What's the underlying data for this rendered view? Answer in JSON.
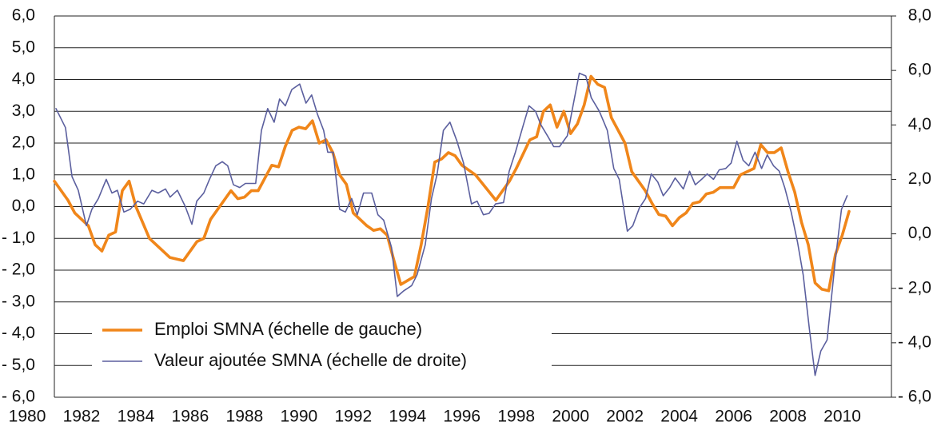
{
  "chart_data": {
    "type": "line",
    "xlim": [
      1981,
      2011.75
    ],
    "xticks": [
      1980,
      1982,
      1984,
      1986,
      1988,
      1990,
      1992,
      1994,
      1996,
      1998,
      2000,
      2002,
      2004,
      2006,
      2008,
      2010
    ],
    "ylim": [
      -6,
      6
    ],
    "yticks": [
      {
        "value": 6,
        "label": "6,0"
      },
      {
        "value": 5,
        "label": "5,0"
      },
      {
        "value": 4,
        "label": "4,0"
      },
      {
        "value": 3,
        "label": "3,0"
      },
      {
        "value": 2,
        "label": "2,0"
      },
      {
        "value": 1,
        "label": "1,0"
      },
      {
        "value": 0,
        "label": "0,0"
      },
      {
        "value": -1,
        "label": "- 1,0"
      },
      {
        "value": -2,
        "label": "- 2,0"
      },
      {
        "value": -3,
        "label": "- 3,0"
      },
      {
        "value": -4,
        "label": "- 4,0"
      },
      {
        "value": -5,
        "label": "- 5,0"
      },
      {
        "value": -6,
        "label": "- 6,0"
      }
    ],
    "y2lim": [
      -6,
      8
    ],
    "y2ticks": [
      {
        "value": 8,
        "label": "8,0"
      },
      {
        "value": 6,
        "label": "6,0"
      },
      {
        "value": 4,
        "label": "4,0"
      },
      {
        "value": 2,
        "label": "2,0"
      },
      {
        "value": 0,
        "label": "0,0"
      },
      {
        "value": -2,
        "label": "- 2,0"
      },
      {
        "value": -4,
        "label": "- 4,0"
      },
      {
        "value": -6,
        "label": "- 6,0"
      }
    ],
    "grid": true,
    "legend": "lower left",
    "series": [
      {
        "name": "Emploi SMNA (échelle de gauche)",
        "color": "#f0861a",
        "axis": "y",
        "x": [
          1981.0,
          1981.5,
          1981.75,
          1982.25,
          1982.5,
          1982.75,
          1983.0,
          1983.25,
          1983.5,
          1983.75,
          1984.0,
          1984.5,
          1985.25,
          1985.75,
          1986.25,
          1986.5,
          1986.75,
          1987.25,
          1987.5,
          1987.75,
          1988.0,
          1988.25,
          1988.5,
          1988.75,
          1989.0,
          1989.25,
          1989.5,
          1989.75,
          1990.0,
          1990.25,
          1990.5,
          1990.75,
          1991.0,
          1991.25,
          1991.5,
          1991.75,
          1992.0,
          1992.5,
          1992.75,
          1993.0,
          1993.25,
          1993.5,
          1993.75,
          1994.25,
          1994.5,
          1994.75,
          1995.0,
          1995.25,
          1995.5,
          1995.75,
          1996.0,
          1996.5,
          1997.25,
          1997.5,
          1997.75,
          1998.0,
          1998.5,
          1998.75,
          1999.0,
          1999.25,
          1999.5,
          1999.75,
          2000.0,
          2000.25,
          2000.5,
          2000.75,
          2001.0,
          2001.25,
          2001.5,
          2002.0,
          2002.25,
          2002.75,
          2003.0,
          2003.25,
          2003.5,
          2003.75,
          2004.0,
          2004.25,
          2004.5,
          2004.75,
          2005.0,
          2005.25,
          2005.5,
          2006.0,
          2006.25,
          2006.5,
          2006.75,
          2007.0,
          2007.25,
          2007.5,
          2007.75,
          2008.0,
          2008.25,
          2008.5,
          2008.75,
          2009.0,
          2009.25,
          2009.5,
          2009.75,
          2010.0,
          2010.25
        ],
        "values": [
          0.8,
          0.2,
          -0.2,
          -0.6,
          -1.2,
          -1.4,
          -0.9,
          -0.8,
          0.5,
          0.8,
          0.0,
          -1.0,
          -1.6,
          -1.7,
          -1.1,
          -1.0,
          -0.4,
          0.2,
          0.5,
          0.25,
          0.3,
          0.5,
          0.5,
          0.9,
          1.3,
          1.25,
          1.9,
          2.4,
          2.5,
          2.45,
          2.7,
          2.0,
          2.1,
          1.7,
          1.0,
          0.7,
          -0.2,
          -0.6,
          -0.75,
          -0.7,
          -0.9,
          -1.7,
          -2.45,
          -2.2,
          -1.2,
          0.0,
          1.4,
          1.5,
          1.7,
          1.6,
          1.3,
          1.0,
          0.2,
          0.5,
          0.8,
          1.2,
          2.1,
          2.2,
          3.0,
          3.2,
          2.5,
          3.0,
          2.3,
          2.6,
          3.2,
          4.1,
          3.85,
          3.75,
          2.8,
          2.0,
          1.1,
          0.5,
          0.1,
          -0.25,
          -0.3,
          -0.6,
          -0.35,
          -0.2,
          0.1,
          0.15,
          0.4,
          0.45,
          0.6,
          0.6,
          1.0,
          1.1,
          1.2,
          1.95,
          1.7,
          1.7,
          1.85,
          1.1,
          0.45,
          -0.5,
          -1.2,
          -2.4,
          -2.6,
          -2.65,
          -1.5,
          -0.9,
          -0.15
        ]
      },
      {
        "name": "Valeur ajoutée SMNA (échelle de droite)",
        "color": "#5b5f9e",
        "axis": "y2",
        "x": [
          1981.06,
          1981.41,
          1981.65,
          1981.88,
          1982.18,
          1982.38,
          1982.62,
          1982.91,
          1983.12,
          1983.32,
          1983.56,
          1983.79,
          1984.06,
          1984.29,
          1984.59,
          1984.82,
          1985.09,
          1985.26,
          1985.53,
          1985.82,
          1986.06,
          1986.24,
          1986.5,
          1986.71,
          1986.94,
          1987.18,
          1987.38,
          1987.59,
          1987.82,
          1988.03,
          1988.41,
          1988.62,
          1988.85,
          1989.09,
          1989.29,
          1989.5,
          1989.74,
          1990.03,
          1990.26,
          1990.47,
          1990.68,
          1990.91,
          1991.06,
          1991.26,
          1991.5,
          1991.71,
          1991.94,
          1992.15,
          1992.38,
          1992.68,
          1992.91,
          1993.12,
          1993.41,
          1993.62,
          1993.85,
          1994.15,
          1994.35,
          1994.65,
          1994.88,
          1995.09,
          1995.32,
          1995.56,
          1995.82,
          1996.06,
          1996.35,
          1996.56,
          1996.79,
          1997.0,
          1997.24,
          1997.53,
          1997.74,
          1997.97,
          1998.26,
          1998.47,
          1998.71,
          1998.91,
          1999.15,
          1999.38,
          1999.59,
          1999.88,
          2000.09,
          2000.32,
          2000.56,
          2000.76,
          2001.06,
          2001.35,
          2001.59,
          2001.79,
          2002.09,
          2002.29,
          2002.53,
          2002.76,
          2002.97,
          2003.21,
          2003.41,
          2003.65,
          2003.85,
          2004.15,
          2004.38,
          2004.59,
          2004.82,
          2005.03,
          2005.26,
          2005.47,
          2005.71,
          2005.91,
          2006.12,
          2006.35,
          2006.56,
          2006.79,
          2007.03,
          2007.24,
          2007.47,
          2007.68,
          2007.88,
          2008.12,
          2008.35,
          2008.56,
          2008.79,
          2009.0,
          2009.21,
          2009.44,
          2009.74,
          2009.97,
          2010.18
        ],
        "values": [
          4.6,
          3.9,
          2.1,
          1.6,
          0.3,
          0.9,
          1.3,
          2.0,
          1.5,
          1.6,
          0.8,
          0.9,
          1.2,
          1.1,
          1.6,
          1.5,
          1.65,
          1.35,
          1.6,
          1.0,
          0.35,
          1.2,
          1.5,
          2.0,
          2.5,
          2.65,
          2.5,
          1.8,
          1.7,
          1.85,
          1.85,
          3.8,
          4.6,
          4.1,
          4.95,
          4.7,
          5.3,
          5.5,
          4.8,
          5.1,
          4.4,
          3.8,
          3.0,
          3.0,
          0.9,
          0.8,
          1.3,
          0.7,
          1.5,
          1.5,
          0.7,
          0.5,
          -0.5,
          -2.3,
          -2.1,
          -1.9,
          -1.5,
          -0.4,
          1.3,
          2.2,
          3.8,
          4.1,
          3.4,
          2.6,
          1.1,
          1.2,
          0.7,
          0.75,
          1.1,
          1.15,
          2.3,
          3.0,
          4.0,
          4.7,
          4.5,
          4.0,
          3.6,
          3.2,
          3.2,
          3.6,
          4.7,
          5.9,
          5.8,
          5.0,
          4.5,
          3.8,
          2.4,
          2.0,
          0.1,
          0.3,
          0.95,
          1.3,
          2.2,
          1.9,
          1.4,
          1.7,
          2.05,
          1.65,
          2.3,
          1.8,
          2.0,
          2.2,
          2.0,
          2.35,
          2.4,
          2.6,
          3.4,
          2.7,
          2.5,
          3.0,
          2.4,
          2.9,
          2.5,
          2.3,
          1.7,
          0.8,
          -0.3,
          -1.5,
          -3.5,
          -5.2,
          -4.3,
          -3.9,
          -1.0,
          0.9,
          1.4
        ]
      }
    ]
  }
}
